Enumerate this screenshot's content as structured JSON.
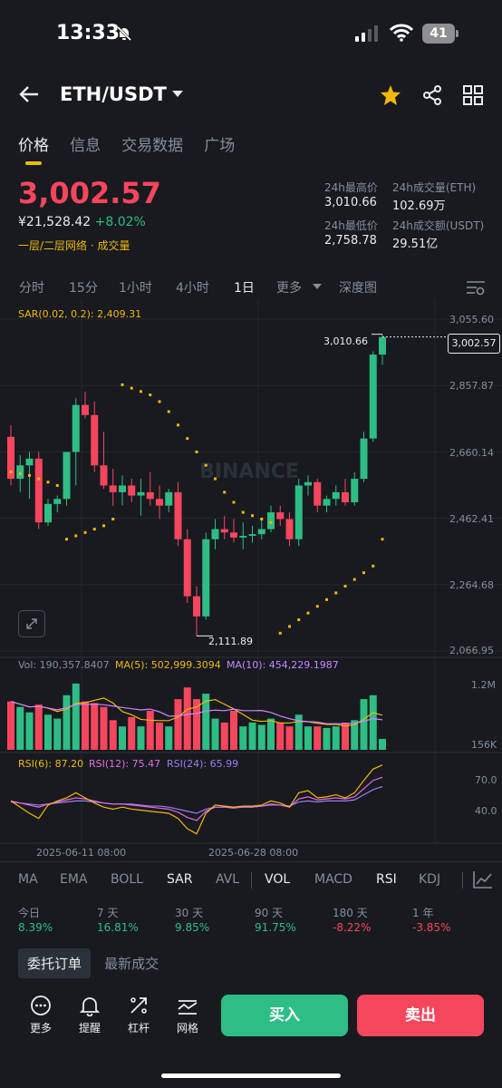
{
  "status": {
    "time": "13:33",
    "battery": "41"
  },
  "header": {
    "pair": "ETH/USDT"
  },
  "tabs": [
    "价格",
    "信息",
    "交易数据",
    "广场"
  ],
  "ticker": {
    "price": "3,002.57",
    "cny": "¥21,528.42",
    "change": "+8.02%",
    "grid_link": "一层/二层网络 · 成交量"
  },
  "stats": {
    "high_label": "24h最高价",
    "high": "3,010.66",
    "vol_eth_label": "24h成交量(ETH)",
    "vol_eth": "102.69万",
    "low_label": "24h最低价",
    "low": "2,758.78",
    "vol_usdt_label": "24h成交额(USDT)",
    "vol_usdt": "29.51亿"
  },
  "intervals": [
    "分时",
    "15分",
    "1小时",
    "4小时",
    "1日",
    "更多",
    "深度图"
  ],
  "chart": {
    "sar_label": "SAR(0.02, 0.2): 2,409.31",
    "price_ticks": [
      "3,055.60",
      "2,857.87",
      "2,660.14",
      "2,462.41",
      "2,264.68",
      "2,066.95"
    ],
    "high_marker": "3,010.66",
    "low_marker": "2,111.89",
    "last_price": "3,002.57",
    "watermark": "BINANCE",
    "vol_label": "Vol: 190,357.8407",
    "ma5_label": "MA(5): 502,999.3094",
    "ma10_label": "MA(10): 454,229.1987",
    "vol_ticks": [
      "1.2M",
      "156K"
    ],
    "rsi6_label": "RSI(6): 87.20",
    "rsi12_label": "RSI(12): 75.47",
    "rsi24_label": "RSI(24): 65.99",
    "rsi_ticks": [
      "70.0",
      "40.0"
    ],
    "dates": [
      "2025-06-11 08:00",
      "2025-06-28 08:00"
    ],
    "colors": {
      "up": "#2ebd85",
      "down": "#f6465d",
      "sar": "#f0b90b",
      "ma5": "#f0b90b",
      "ma10": "#c987ff",
      "rsi6": "#f0b90b",
      "rsi12": "#e56ee0",
      "rsi24": "#9f7cf0"
    }
  },
  "chart_data": {
    "type": "candlestick",
    "price_range": [
      2066.95,
      3055.6
    ],
    "candles": [
      {
        "o": 2705,
        "h": 2740,
        "l": 2560,
        "c": 2580
      },
      {
        "o": 2580,
        "h": 2650,
        "l": 2540,
        "c": 2620
      },
      {
        "o": 2620,
        "h": 2660,
        "l": 2520,
        "c": 2640
      },
      {
        "o": 2640,
        "h": 2660,
        "l": 2430,
        "c": 2450
      },
      {
        "o": 2450,
        "h": 2520,
        "l": 2440,
        "c": 2505
      },
      {
        "o": 2505,
        "h": 2530,
        "l": 2480,
        "c": 2520
      },
      {
        "o": 2520,
        "h": 2660,
        "l": 2500,
        "c": 2660
      },
      {
        "o": 2660,
        "h": 2820,
        "l": 2560,
        "c": 2800
      },
      {
        "o": 2800,
        "h": 2840,
        "l": 2760,
        "c": 2770
      },
      {
        "o": 2770,
        "h": 2810,
        "l": 2600,
        "c": 2620
      },
      {
        "o": 2620,
        "h": 2720,
        "l": 2550,
        "c": 2560
      },
      {
        "o": 2560,
        "h": 2610,
        "l": 2500,
        "c": 2540
      },
      {
        "o": 2540,
        "h": 2590,
        "l": 2500,
        "c": 2560
      },
      {
        "o": 2560,
        "h": 2580,
        "l": 2510,
        "c": 2530
      },
      {
        "o": 2530,
        "h": 2580,
        "l": 2470,
        "c": 2540
      },
      {
        "o": 2540,
        "h": 2600,
        "l": 2500,
        "c": 2520
      },
      {
        "o": 2520,
        "h": 2560,
        "l": 2460,
        "c": 2500
      },
      {
        "o": 2500,
        "h": 2550,
        "l": 2480,
        "c": 2540
      },
      {
        "o": 2540,
        "h": 2570,
        "l": 2380,
        "c": 2400
      },
      {
        "o": 2400,
        "h": 2430,
        "l": 2210,
        "c": 2230
      },
      {
        "o": 2230,
        "h": 2260,
        "l": 2112,
        "c": 2170
      },
      {
        "o": 2170,
        "h": 2420,
        "l": 2160,
        "c": 2400
      },
      {
        "o": 2400,
        "h": 2460,
        "l": 2370,
        "c": 2430
      },
      {
        "o": 2430,
        "h": 2470,
        "l": 2400,
        "c": 2420
      },
      {
        "o": 2420,
        "h": 2460,
        "l": 2390,
        "c": 2405
      },
      {
        "o": 2405,
        "h": 2450,
        "l": 2370,
        "c": 2410
      },
      {
        "o": 2410,
        "h": 2440,
        "l": 2390,
        "c": 2415
      },
      {
        "o": 2415,
        "h": 2460,
        "l": 2400,
        "c": 2430
      },
      {
        "o": 2430,
        "h": 2500,
        "l": 2420,
        "c": 2480
      },
      {
        "o": 2480,
        "h": 2500,
        "l": 2440,
        "c": 2460
      },
      {
        "o": 2460,
        "h": 2480,
        "l": 2380,
        "c": 2400
      },
      {
        "o": 2400,
        "h": 2580,
        "l": 2380,
        "c": 2560
      },
      {
        "o": 2560,
        "h": 2590,
        "l": 2530,
        "c": 2570
      },
      {
        "o": 2570,
        "h": 2580,
        "l": 2480,
        "c": 2500
      },
      {
        "o": 2500,
        "h": 2530,
        "l": 2480,
        "c": 2520
      },
      {
        "o": 2520,
        "h": 2560,
        "l": 2500,
        "c": 2540
      },
      {
        "o": 2540,
        "h": 2580,
        "l": 2500,
        "c": 2510
      },
      {
        "o": 2510,
        "h": 2600,
        "l": 2500,
        "c": 2580
      },
      {
        "o": 2580,
        "h": 2720,
        "l": 2570,
        "c": 2700
      },
      {
        "o": 2700,
        "h": 2960,
        "l": 2690,
        "c": 2950
      },
      {
        "o": 2950,
        "h": 3011,
        "l": 2920,
        "c": 3002
      }
    ],
    "sar": [
      2600,
      2595,
      2590,
      2580,
      2570,
      2560,
      2400,
      2410,
      2420,
      2430,
      2440,
      2460,
      2860,
      2850,
      2840,
      2830,
      2810,
      2780,
      2740,
      2700,
      2660,
      2620,
      2580,
      2540,
      2510,
      2480,
      2470,
      2460,
      2450,
      2120,
      2140,
      2160,
      2180,
      2200,
      2220,
      2240,
      2260,
      2280,
      2300,
      2320,
      2400
    ],
    "volume": [
      0.62,
      0.55,
      0.48,
      0.58,
      0.45,
      0.4,
      0.7,
      0.85,
      0.62,
      0.6,
      0.55,
      0.38,
      0.3,
      0.42,
      0.3,
      0.5,
      0.35,
      0.3,
      0.65,
      0.8,
      0.65,
      0.72,
      0.4,
      0.35,
      0.5,
      0.3,
      0.35,
      0.32,
      0.4,
      0.35,
      0.3,
      0.45,
      0.3,
      0.3,
      0.28,
      0.3,
      0.35,
      0.38,
      0.65,
      0.7,
      0.14
    ],
    "rsi6": [
      52,
      46,
      40,
      35,
      48,
      52,
      55,
      60,
      55,
      50,
      46,
      44,
      46,
      44,
      43,
      42,
      41,
      40,
      35,
      25,
      20,
      40,
      48,
      47,
      46,
      47,
      47,
      48,
      52,
      50,
      46,
      60,
      62,
      55,
      56,
      58,
      55,
      60,
      72,
      83,
      87
    ],
    "rsi12": [
      52,
      50,
      48,
      46,
      49,
      51,
      53,
      55,
      54,
      52,
      50,
      49,
      49,
      48,
      47,
      46,
      45,
      44,
      41,
      36,
      33,
      42,
      46,
      46,
      45,
      46,
      46,
      47,
      49,
      48,
      46,
      54,
      56,
      53,
      54,
      55,
      54,
      56,
      64,
      72,
      75
    ],
    "rsi24": [
      51,
      50,
      49,
      48,
      49,
      50,
      51,
      52,
      52,
      51,
      50,
      49,
      49,
      49,
      48,
      47,
      47,
      46,
      44,
      42,
      40,
      44,
      46,
      46,
      46,
      46,
      46,
      47,
      48,
      48,
      47,
      51,
      52,
      51,
      52,
      52,
      52,
      53,
      58,
      63,
      66
    ]
  },
  "indicators": [
    "MA",
    "EMA",
    "BOLL",
    "SAR",
    "AVL",
    "VOL",
    "MACD",
    "RSI",
    "KDJ"
  ],
  "performance": [
    {
      "label": "今日",
      "value": "8.39%",
      "color": "#2ebd85"
    },
    {
      "label": "7 天",
      "value": "16.81%",
      "color": "#2ebd85"
    },
    {
      "label": "30 天",
      "value": "9.85%",
      "color": "#2ebd85"
    },
    {
      "label": "90 天",
      "value": "91.75%",
      "color": "#2ebd85"
    },
    {
      "label": "180 天",
      "value": "-8.22%",
      "color": "#f6465d"
    },
    {
      "label": "1 年",
      "value": "-3.85%",
      "color": "#f6465d"
    }
  ],
  "order_tabs": [
    "委托订单",
    "最新成交"
  ],
  "bottom": {
    "more": "更多",
    "alert": "提醒",
    "leverage": "杠杆",
    "grid": "网格",
    "buy": "买入",
    "sell": "卖出"
  }
}
